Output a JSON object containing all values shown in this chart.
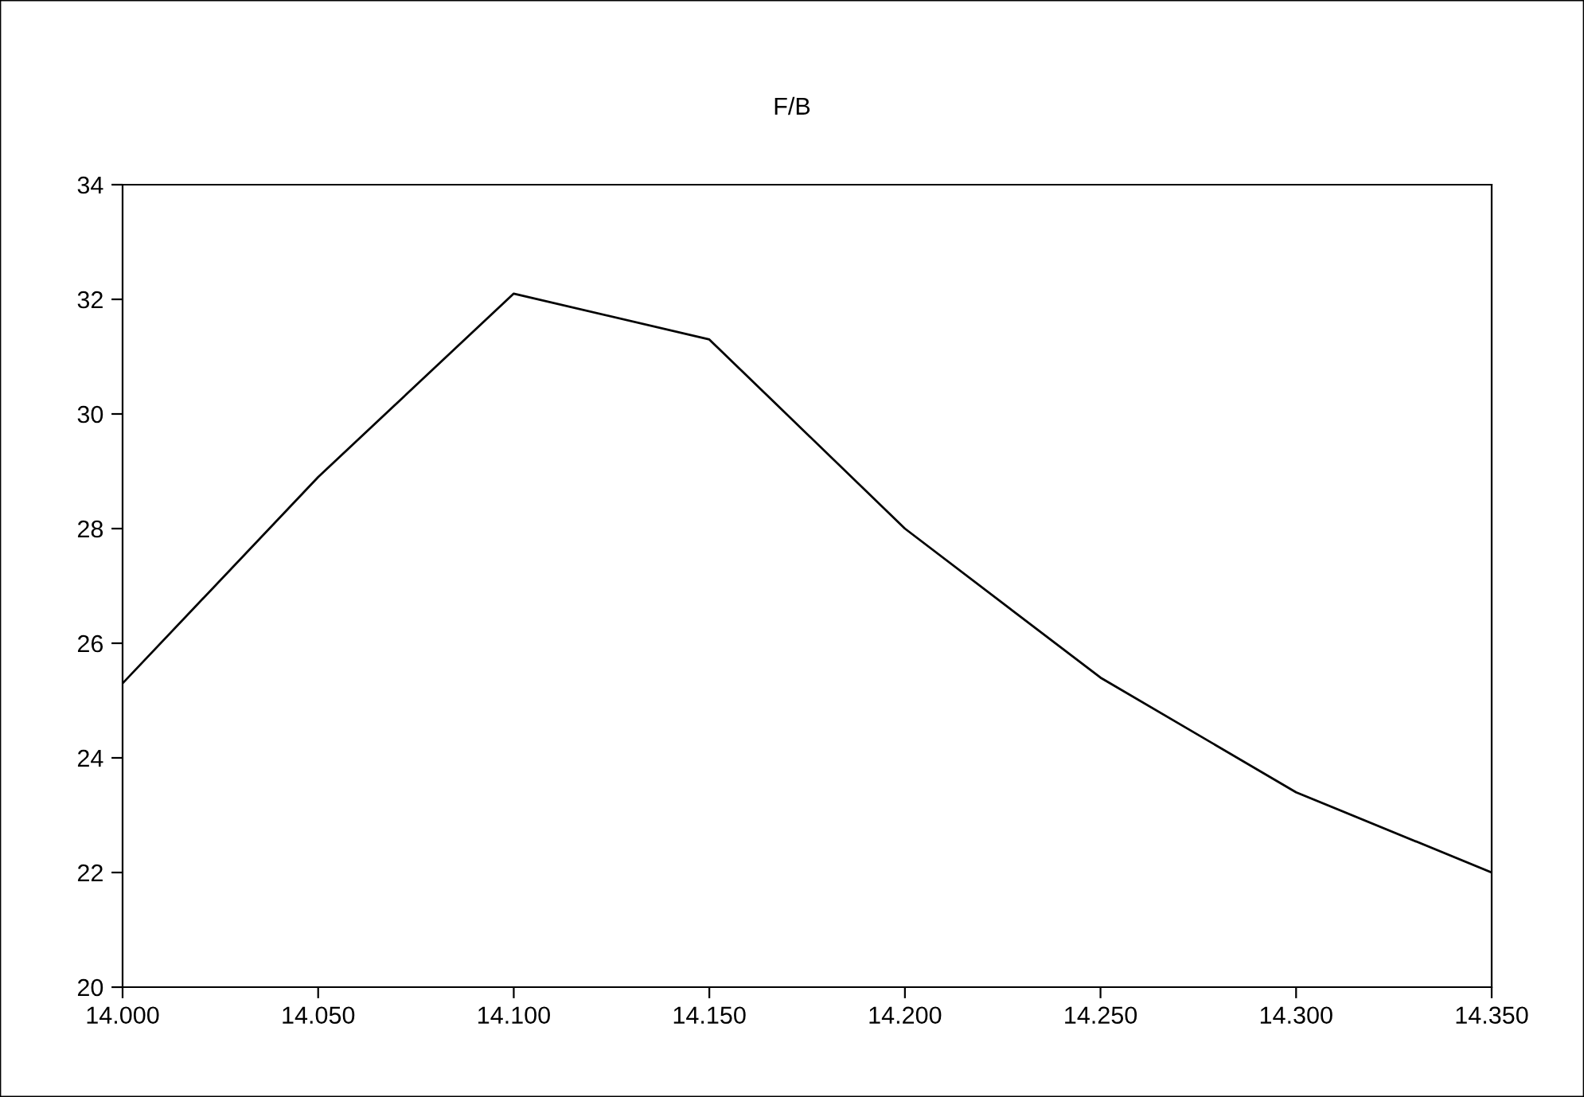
{
  "chart_data": {
    "type": "line",
    "title": "F/B",
    "x": [
      14.0,
      14.05,
      14.1,
      14.15,
      14.2,
      14.25,
      14.3,
      14.35
    ],
    "series": [
      {
        "color": "#000000",
        "values": [
          25.3,
          28.9,
          32.1,
          31.3,
          28.0,
          25.4,
          23.4,
          22.0
        ]
      }
    ],
    "xlim": [
      14.0,
      14.35
    ],
    "xticks": [
      {
        "value": 14.0,
        "label": "14.000"
      },
      {
        "value": 14.05,
        "label": "14.050"
      },
      {
        "value": 14.1,
        "label": "14.100"
      },
      {
        "value": 14.15,
        "label": "14.150"
      },
      {
        "value": 14.2,
        "label": "14.200"
      },
      {
        "value": 14.25,
        "label": "14.250"
      },
      {
        "value": 14.3,
        "label": "14.300"
      },
      {
        "value": 14.35,
        "label": "14.350"
      }
    ],
    "ylim": [
      20,
      34
    ],
    "yticks": [
      20,
      22,
      24,
      26,
      28,
      30,
      32,
      34
    ],
    "grid": false,
    "legend": false,
    "marker": "none",
    "line_style": "solid"
  }
}
